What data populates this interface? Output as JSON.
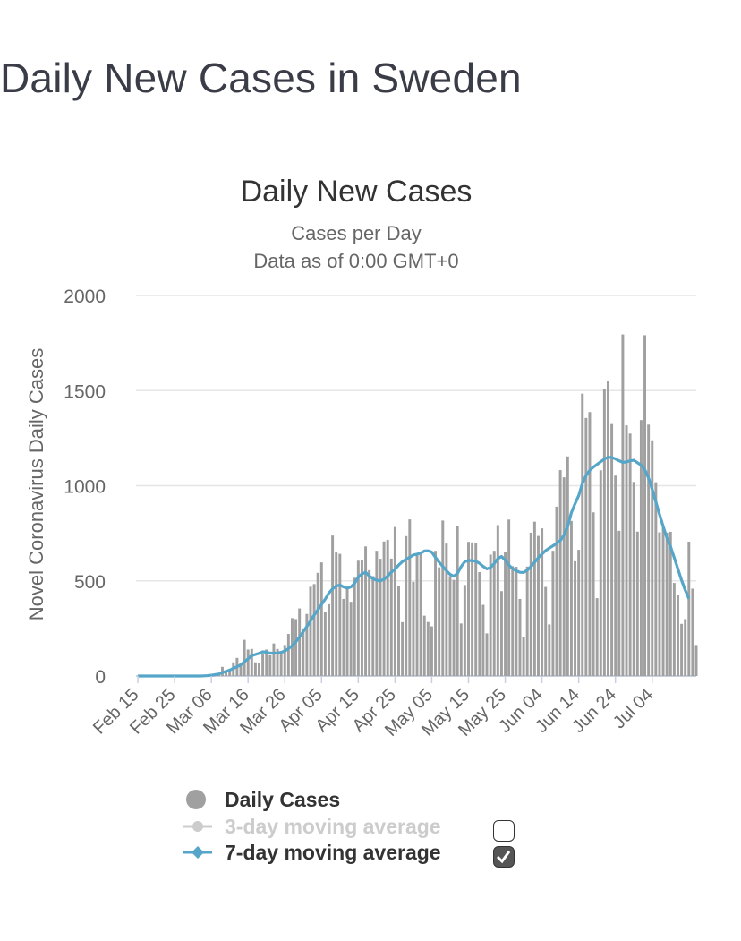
{
  "page": {
    "title": "Daily New Cases in Sweden"
  },
  "colors": {
    "bar": "#a0a0a0",
    "ma7": "#55a6c8",
    "ma3": "#c8c8c8",
    "grid": "#e6e6e6",
    "axis_text": "#666666"
  },
  "chart_data": {
    "type": "bar",
    "title": "Daily New Cases",
    "subtitle_line1": "Cases per Day",
    "subtitle_line2": "Data as of 0:00 GMT+0",
    "xlabel": "",
    "ylabel": "Novel Coronavirus Daily Cases",
    "ylim": [
      0,
      2000
    ],
    "y_ticks": [
      "2000",
      "1500",
      "1000",
      "500",
      "0"
    ],
    "y_tick_values": [
      2000,
      1500,
      1000,
      500,
      0
    ],
    "x_ticks": [
      "Feb 15",
      "Feb 25",
      "Mar 06",
      "Mar 16",
      "Mar 26",
      "Apr 05",
      "Apr 15",
      "Apr 25",
      "May 05",
      "May 15",
      "May 25",
      "Jun 04",
      "Jun 14",
      "Jun 24",
      "Jul 04"
    ],
    "x_tick_day_index": [
      0,
      10,
      20,
      30,
      40,
      50,
      60,
      70,
      80,
      90,
      100,
      110,
      120,
      130,
      140
    ],
    "grid": true,
    "legend_position": "bottom",
    "series": [
      {
        "name": "Daily Cases",
        "type": "bar",
        "values": [
          0,
          0,
          0,
          0,
          0,
          0,
          0,
          0,
          0,
          0,
          0,
          0,
          0,
          0,
          0,
          0,
          0,
          0,
          1,
          3,
          4,
          7,
          12,
          48,
          30,
          37,
          72,
          95,
          66,
          190,
          139,
          142,
          72,
          67,
          116,
          139,
          109,
          171,
          142,
          131,
          163,
          221,
          304,
          299,
          355,
          250,
          326,
          469,
          483,
          542,
          597,
          335,
          377,
          738,
          649,
          642,
          405,
          462,
          390,
          516,
          606,
          610,
          681,
          556,
          525,
          658,
          616,
          707,
          715,
          617,
          783,
          475,
          283,
          735,
          823,
          495,
          642,
          645,
          317,
          284,
          261,
          658,
          571,
          817,
          696,
          525,
          505,
          790,
          276,
          478,
          705,
          702,
          699,
          546,
          374,
          224,
          638,
          658,
          793,
          446,
          654,
          822,
          577,
          574,
          405,
          205,
          575,
          753,
          811,
          736,
          776,
          468,
          271,
          658,
          890,
          1082,
          1044,
          1154,
          815,
          603,
          663,
          1484,
          1356,
          1387,
          860,
          409,
          1081,
          1507,
          1551,
          1324,
          1053,
          763,
          1795,
          1317,
          1274,
          1020,
          759,
          1345,
          1791,
          1321,
          1239,
          1018,
          755,
          785,
          754,
          758,
          489,
          427,
          274,
          299,
          706,
          459,
          163
        ]
      },
      {
        "name": "3-day moving average",
        "type": "line",
        "visible": false,
        "values": []
      },
      {
        "name": "7-day moving average",
        "type": "line",
        "values": [
          0,
          0,
          0,
          0,
          0,
          0,
          0,
          0,
          0,
          0,
          0,
          0,
          0,
          0,
          0,
          0,
          0,
          0,
          1,
          2,
          4,
          7,
          10,
          18,
          24,
          31,
          40,
          49,
          58,
          75,
          90,
          107,
          113,
          119,
          127,
          125,
          120,
          120,
          121,
          124,
          131,
          144,
          159,
          180,
          204,
          232,
          260,
          290,
          320,
          348,
          376,
          404,
          436,
          458,
          473,
          478,
          468,
          461,
          468,
          487,
          520,
          536,
          545,
          525,
          511,
          503,
          500,
          508,
          525,
          546,
          561,
          583,
          601,
          613,
          624,
          636,
          640,
          646,
          657,
          658,
          651,
          624,
          598,
          576,
          553,
          534,
          524,
          539,
          575,
          601,
          607,
          606,
          603,
          592,
          576,
          563,
          570,
          591,
          617,
          628,
          609,
          582,
          565,
          553,
          545,
          544,
          556,
          575,
          598,
          621,
          641,
          659,
          672,
          684,
          698,
          712,
          740,
          786,
          858,
          905,
          948,
          1012,
          1053,
          1081,
          1098,
          1112,
          1126,
          1140,
          1150,
          1148,
          1141,
          1131,
          1123,
          1125,
          1131,
          1134,
          1121,
          1108,
          1084,
          1041,
          982,
          915,
          849,
          786,
          726,
          680,
          622,
          563,
          503,
          451,
          406
        ]
      }
    ]
  },
  "legend": {
    "daily": "Daily Cases",
    "ma3": "3-day moving average",
    "ma7": "7-day moving average",
    "ma3_checked": false,
    "ma7_checked": true
  }
}
